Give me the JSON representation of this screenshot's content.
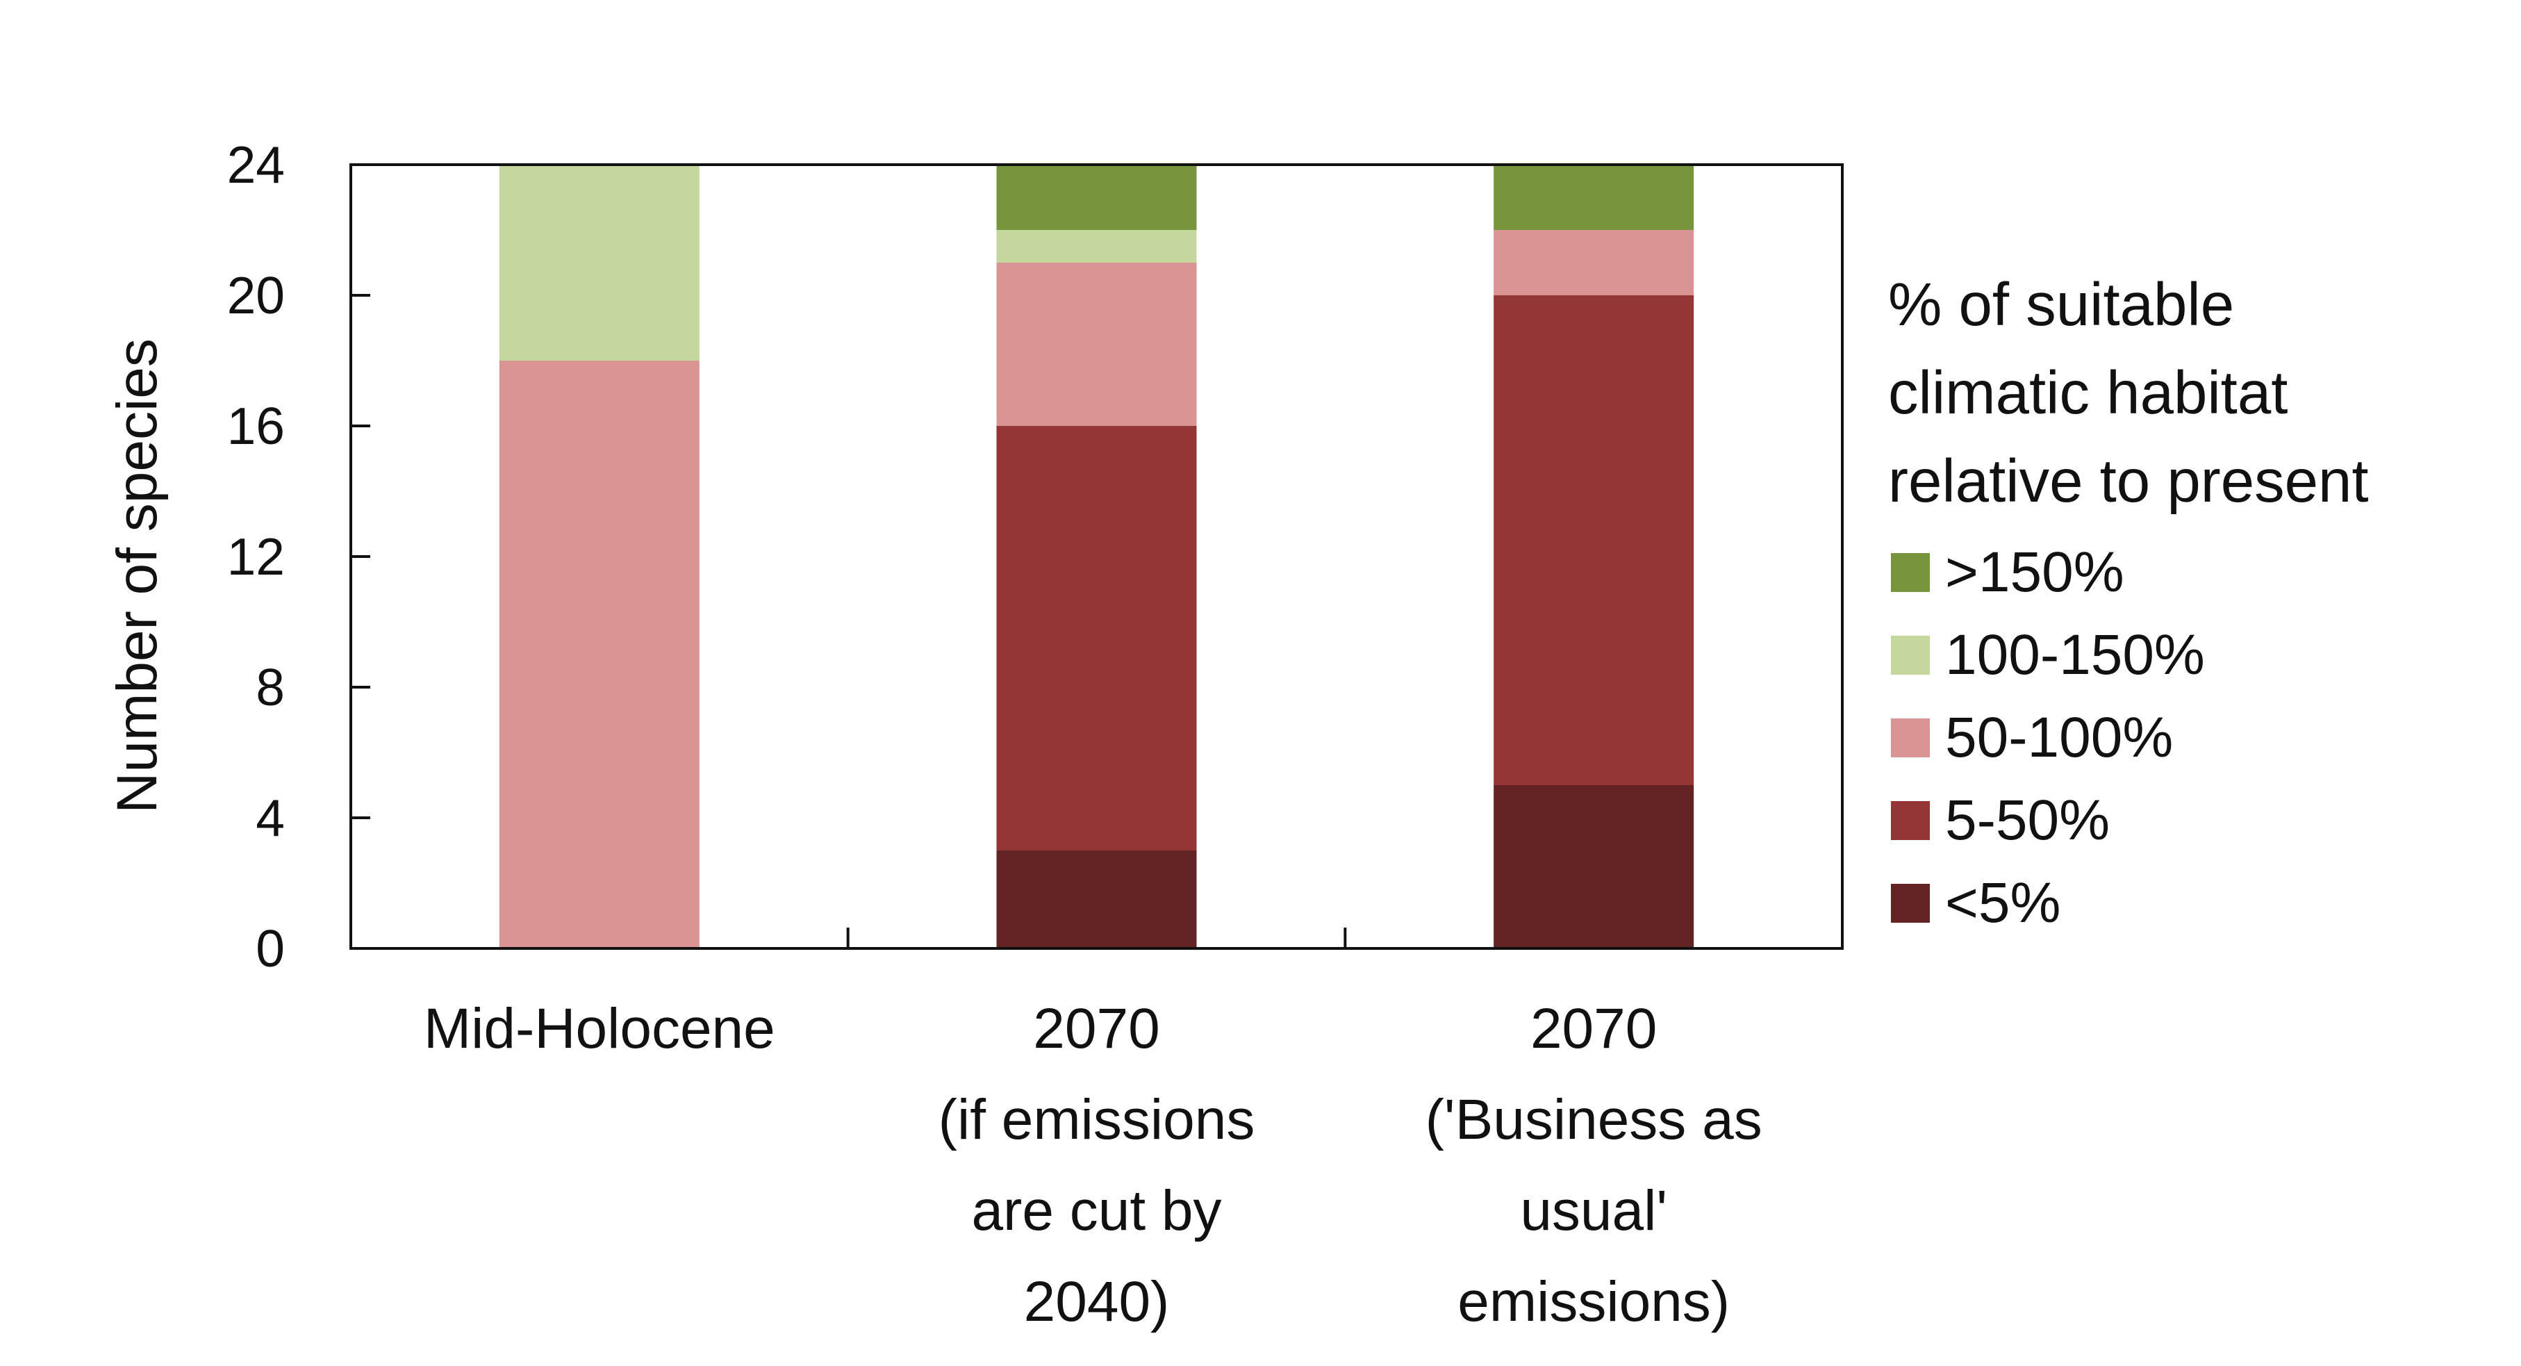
{
  "chart_data": {
    "type": "bar",
    "stacked": true,
    "ylabel": "Number of species",
    "ylim": [
      0,
      24
    ],
    "yticks": [
      0,
      4,
      8,
      12,
      16,
      20,
      24
    ],
    "categories": [
      [
        "Mid-Holocene"
      ],
      [
        "2070",
        "(if emissions",
        "are cut by",
        "2040)"
      ],
      [
        "2070",
        "('Business as",
        "usual'",
        "emissions)"
      ]
    ],
    "legend_title": [
      "% of suitable",
      "climatic habitat",
      "relative to present"
    ],
    "legend_position": "right",
    "series": [
      {
        "name": "<5%",
        "color": "#632323",
        "values": [
          0,
          3,
          5
        ]
      },
      {
        "name": "5-50%",
        "color": "#943636",
        "values": [
          0,
          13,
          15
        ]
      },
      {
        "name": "50-100%",
        "color": "#da9494",
        "values": [
          18,
          5,
          2
        ]
      },
      {
        "name": "100-150%",
        "color": "#c4d89d",
        "values": [
          6,
          1,
          0
        ]
      },
      {
        "name": ">150%",
        "color": "#77953c",
        "values": [
          0,
          2,
          2
        ]
      }
    ],
    "legend_order": [
      ">150%",
      "100-150%",
      "50-100%",
      "5-50%",
      "<5%"
    ]
  }
}
